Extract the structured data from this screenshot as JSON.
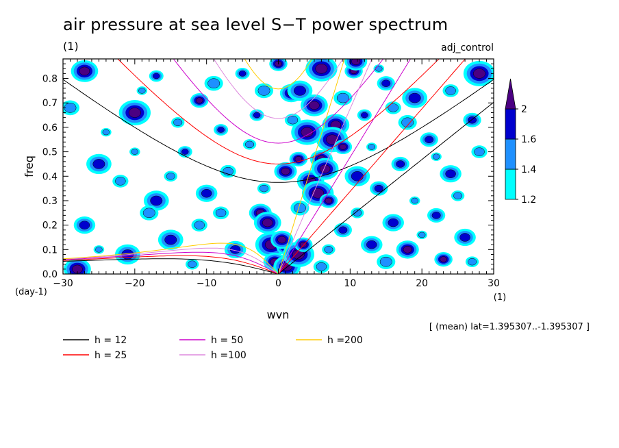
{
  "header": {
    "title": "air pressure at sea level S−T power spectrum",
    "units": "(1)",
    "tag": "adj_control"
  },
  "footer": {
    "note": "[ (mean) lat=1.395307..-1.395307 ]"
  },
  "chart_data": {
    "type": "heatmap",
    "title": "air pressure at sea level S−T power spectrum",
    "xlabel": "wvn",
    "ylabel": "freq",
    "xunits": "(1)",
    "yunits": "(day-1)",
    "xlim": [
      -30,
      30
    ],
    "ylim": [
      0,
      0.88
    ],
    "xticks": [
      -30,
      -20,
      -10,
      0,
      10,
      20,
      30
    ],
    "xtick_labels": [
      "−30",
      "−20",
      "−10",
      "0",
      "10",
      "20",
      "30"
    ],
    "yticks": [
      0.0,
      0.1,
      0.2,
      0.3,
      0.4,
      0.5,
      0.6,
      0.7,
      0.8
    ],
    "ytick_labels": [
      "0.0",
      "0.1",
      "0.2",
      "0.3",
      "0.4",
      "0.5",
      "0.6",
      "0.7",
      "0.8"
    ],
    "colorbar": {
      "levels": [
        1.2,
        1.4,
        1.6,
        2
      ],
      "labels": [
        "1.2",
        "1.4",
        "1.6",
        "2"
      ],
      "colors": [
        "#00ffff",
        "#1e90ff",
        "#0000cd",
        "#4b0082"
      ]
    },
    "dispersion_curves": [
      {
        "label": "h = 12",
        "h": 12,
        "color": "#000000"
      },
      {
        "label": "h = 25",
        "h": 25,
        "color": "#ff0000"
      },
      {
        "label": "h = 50",
        "h": 50,
        "color": "#cc00cc"
      },
      {
        "label": "h =100",
        "h": 100,
        "color": "#dd88dd"
      },
      {
        "label": "h =200",
        "h": 200,
        "color": "#ffcc00"
      }
    ],
    "blobs": [
      {
        "x": 0,
        "y": 0.86,
        "level": 3
      },
      {
        "x": 1.8,
        "y": 0.74,
        "level": 3
      },
      {
        "x": 5,
        "y": 0.69,
        "level": 3
      },
      {
        "x": 6,
        "y": 0.84,
        "level": 3
      },
      {
        "x": 10.5,
        "y": 0.83,
        "level": 3
      },
      {
        "x": 10.8,
        "y": 0.87,
        "level": 3
      },
      {
        "x": 8,
        "y": 0.61,
        "level": 3
      },
      {
        "x": 7.5,
        "y": 0.55,
        "level": 3
      },
      {
        "x": 9,
        "y": 0.52,
        "level": 3
      },
      {
        "x": 6,
        "y": 0.47,
        "level": 3
      },
      {
        "x": 4.5,
        "y": 0.38,
        "level": 3
      },
      {
        "x": 5.5,
        "y": 0.33,
        "level": 3
      },
      {
        "x": 7,
        "y": 0.3,
        "level": 3
      },
      {
        "x": -2.5,
        "y": 0.25,
        "level": 3
      },
      {
        "x": -1.5,
        "y": 0.21,
        "level": 3
      },
      {
        "x": -1,
        "y": 0.12,
        "level": 3
      },
      {
        "x": 1,
        "y": 0.11,
        "level": 3
      },
      {
        "x": -0.5,
        "y": 0.05,
        "level": 3
      },
      {
        "x": 1.2,
        "y": 0.03,
        "level": 3
      },
      {
        "x": 2.8,
        "y": 0.08,
        "level": 3
      },
      {
        "x": 3.5,
        "y": 0.12,
        "level": 3
      },
      {
        "x": 1,
        "y": 0.42,
        "level": 3
      },
      {
        "x": 6.5,
        "y": 0.43,
        "level": 3
      },
      {
        "x": 4,
        "y": 0.58,
        "level": 3
      },
      {
        "x": 2.8,
        "y": 0.47,
        "level": 3
      },
      {
        "x": 0.5,
        "y": 0.14,
        "level": 3
      },
      {
        "x": -28,
        "y": 0.02,
        "level": 3
      },
      {
        "x": 28,
        "y": 0.82,
        "level": 3
      },
      {
        "x": 23,
        "y": 0.06,
        "level": 3
      },
      {
        "x": 18,
        "y": 0.1,
        "level": 3
      },
      {
        "x": -27,
        "y": 0.83,
        "level": 3
      },
      {
        "x": -20,
        "y": 0.66,
        "level": 3
      },
      {
        "x": -11,
        "y": 0.71,
        "level": 3
      },
      {
        "x": 21,
        "y": 0.55,
        "level": 2
      },
      {
        "x": 16,
        "y": 0.21,
        "level": 2
      },
      {
        "x": -15,
        "y": 0.14,
        "level": 2
      },
      {
        "x": -5,
        "y": 0.82,
        "level": 2
      },
      {
        "x": 22,
        "y": 0.24,
        "level": 2
      },
      {
        "x": 26,
        "y": 0.15,
        "level": 2
      },
      {
        "x": -25,
        "y": 0.45,
        "level": 2
      },
      {
        "x": 12,
        "y": 0.65,
        "level": 2
      },
      {
        "x": 17,
        "y": 0.45,
        "level": 2
      },
      {
        "x": 24,
        "y": 0.41,
        "level": 2
      },
      {
        "x": -17,
        "y": 0.3,
        "level": 2
      },
      {
        "x": -8,
        "y": 0.59,
        "level": 2
      },
      {
        "x": 14,
        "y": 0.35,
        "level": 2
      },
      {
        "x": 13,
        "y": 0.12,
        "level": 2
      },
      {
        "x": -21,
        "y": 0.08,
        "level": 2
      },
      {
        "x": -13,
        "y": 0.5,
        "level": 2
      },
      {
        "x": 27,
        "y": 0.63,
        "level": 2
      },
      {
        "x": -10,
        "y": 0.33,
        "level": 2
      },
      {
        "x": 19,
        "y": 0.72,
        "level": 2
      },
      {
        "x": -3,
        "y": 0.65,
        "level": 2
      },
      {
        "x": 9,
        "y": 0.18,
        "level": 2
      },
      {
        "x": -6,
        "y": 0.1,
        "level": 2
      },
      {
        "x": 3,
        "y": 0.75,
        "level": 2
      },
      {
        "x": -17,
        "y": 0.81,
        "level": 2
      },
      {
        "x": 15,
        "y": 0.78,
        "level": 2
      },
      {
        "x": -27,
        "y": 0.2,
        "level": 2
      },
      {
        "x": 11,
        "y": 0.4,
        "level": 2
      },
      {
        "x": -24,
        "y": 0.58,
        "level": 1
      },
      {
        "x": -14,
        "y": 0.62,
        "level": 1
      },
      {
        "x": -7,
        "y": 0.42,
        "level": 1
      },
      {
        "x": -18,
        "y": 0.25,
        "level": 1
      },
      {
        "x": -25,
        "y": 0.1,
        "level": 1
      },
      {
        "x": -12,
        "y": 0.04,
        "level": 1
      },
      {
        "x": 6,
        "y": 0.03,
        "level": 1
      },
      {
        "x": 15,
        "y": 0.05,
        "level": 1
      },
      {
        "x": 20,
        "y": 0.16,
        "level": 1
      },
      {
        "x": 25,
        "y": 0.32,
        "level": 1
      },
      {
        "x": 28,
        "y": 0.5,
        "level": 1
      },
      {
        "x": 18,
        "y": 0.62,
        "level": 1
      },
      {
        "x": 14,
        "y": 0.84,
        "level": 1
      },
      {
        "x": -2,
        "y": 0.35,
        "level": 1
      },
      {
        "x": -22,
        "y": 0.38,
        "level": 1
      },
      {
        "x": -9,
        "y": 0.78,
        "level": 1
      },
      {
        "x": 22,
        "y": 0.48,
        "level": 1
      },
      {
        "x": 11,
        "y": 0.25,
        "level": 1
      },
      {
        "x": 2,
        "y": 0.63,
        "level": 1
      },
      {
        "x": -29,
        "y": 0.68,
        "level": 1
      },
      {
        "x": -19,
        "y": 0.75,
        "level": 1
      },
      {
        "x": -4,
        "y": 0.53,
        "level": 1
      },
      {
        "x": 24,
        "y": 0.75,
        "level": 1
      },
      {
        "x": 9,
        "y": 0.72,
        "level": 1
      },
      {
        "x": 13,
        "y": 0.52,
        "level": 1
      },
      {
        "x": -15,
        "y": 0.4,
        "level": 1
      },
      {
        "x": -11,
        "y": 0.2,
        "level": 1
      },
      {
        "x": 3,
        "y": 0.27,
        "level": 1
      },
      {
        "x": 19,
        "y": 0.3,
        "level": 1
      },
      {
        "x": 27,
        "y": 0.05,
        "level": 1
      },
      {
        "x": -8,
        "y": 0.25,
        "level": 1
      },
      {
        "x": -2,
        "y": 0.75,
        "level": 1
      },
      {
        "x": -20,
        "y": 0.5,
        "level": 1
      },
      {
        "x": 7,
        "y": 0.1,
        "level": 1
      },
      {
        "x": 16,
        "y": 0.68,
        "level": 1
      }
    ]
  }
}
